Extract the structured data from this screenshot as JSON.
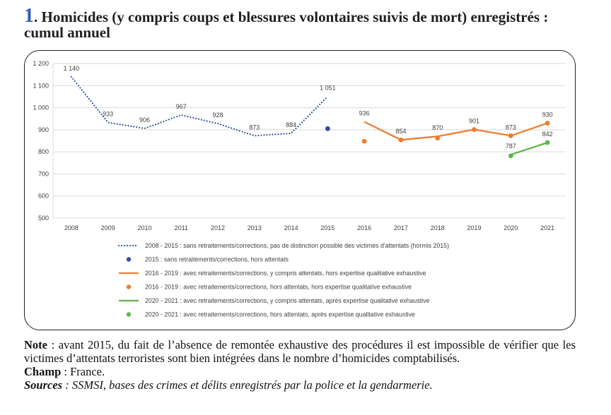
{
  "page": {
    "title_number": "1",
    "title_text": ". Homicides (y compris coups et blessures volontaires suivis de mort) enregistrés : cumul annuel",
    "note_label": "Note",
    "note_text": " : avant 2015, du fait de l’absence de remontée exhaustive des procédures il est impossible de vérifier que les victimes d’attentats terroristes sont bien intégrées dans le nombre d’homicides comptabilisés.",
    "champ_label": "Champ",
    "champ_text": " : France.",
    "sources_label": "Sources",
    "sources_text": " : SSMSI, bases des crimes et délits enregistrés par la police et la gendarmerie."
  },
  "chart_data": {
    "type": "line",
    "categories": [
      "2008",
      "2009",
      "2010",
      "2011",
      "2012",
      "2013",
      "2014",
      "2015",
      "2016",
      "2017",
      "2018",
      "2019",
      "2020",
      "2021"
    ],
    "ylim": [
      500,
      1200
    ],
    "yticks": [
      500,
      600,
      700,
      800,
      900,
      1000,
      1100,
      1200
    ],
    "ytick_labels": [
      "500",
      "600",
      "700",
      "800",
      "900",
      "1 000",
      "1 100",
      "1 200"
    ],
    "grid": true,
    "legend_position": "bottom",
    "series": [
      {
        "name": "2008 - 2015 : sans retraitements/corrections, pas de distinction possible des victimes d'attentats (hormis 2015)",
        "style": "dotted-line",
        "color": "#2e4fa3",
        "x": [
          "2008",
          "2009",
          "2010",
          "2011",
          "2012",
          "2013",
          "2014",
          "2015"
        ],
        "values": [
          1140,
          933,
          906,
          967,
          928,
          873,
          884,
          1051
        ],
        "labels": [
          "1 140",
          "933",
          "906",
          "967",
          "928",
          "873",
          "884",
          "1 051"
        ]
      },
      {
        "name": "2015 : sans retraitements/corrections, hors attentats",
        "style": "marker",
        "color": "#2e4fa3",
        "x": [
          "2015"
        ],
        "values": [
          905
        ],
        "labels": [
          ""
        ]
      },
      {
        "name": "2016 - 2019 : avec retraitements/corrections, y compris attentats, hors expertise qualitative exhaustive",
        "style": "solid-line",
        "color": "#ed7d31",
        "x": [
          "2016",
          "2017",
          "2018",
          "2019",
          "2020",
          "2021"
        ],
        "values": [
          936,
          854,
          870,
          901,
          873,
          930
        ],
        "labels": [
          "936",
          "854",
          "870",
          "901",
          "873",
          "930"
        ]
      },
      {
        "name": "2016 - 2019 : avec retraitements/corrections, hors attentats, hors expertise qualitative exhaustive",
        "style": "markers",
        "color": "#ed7d31",
        "x": [
          "2016",
          "2017",
          "2018",
          "2019",
          "2020",
          "2021"
        ],
        "values": [
          848,
          854,
          862,
          901,
          873,
          930
        ],
        "labels": [
          "",
          "",
          "",
          "",
          "",
          ""
        ]
      },
      {
        "name": "2020 - 2021 : avec retraitements/corrections, y compris attentats, après expertise qualitative exhaustive",
        "style": "solid-line",
        "color": "#5bb846",
        "x": [
          "2020",
          "2021"
        ],
        "values": [
          787,
          842
        ],
        "labels": [
          "787",
          "842"
        ]
      },
      {
        "name": "2020 - 2021 : avec retraitements/corrections, hors attentats, après expertise qualitative exhaustive",
        "style": "markers",
        "color": "#5bb846",
        "x": [
          "2020",
          "2021"
        ],
        "values": [
          782,
          842
        ],
        "labels": [
          "",
          ""
        ]
      }
    ]
  }
}
